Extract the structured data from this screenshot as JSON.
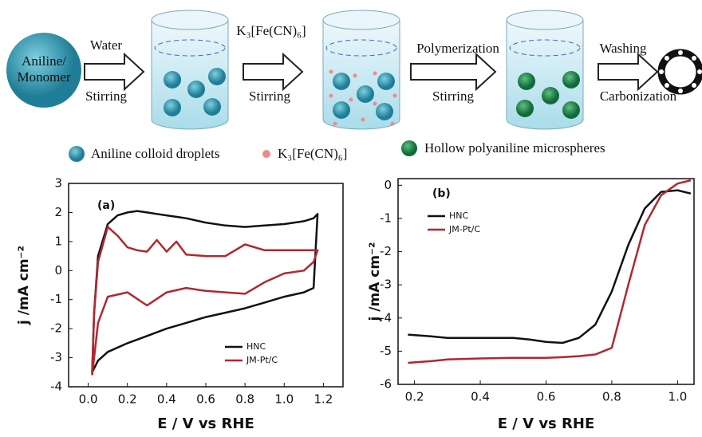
{
  "scheme": {
    "start_lines": [
      "Aniline/",
      "Monomer"
    ],
    "arrows": [
      {
        "above": "Water",
        "below": "Stirring"
      },
      {
        "above": "K₃[Fe(CN)₆]",
        "below": "Stirring"
      },
      {
        "above": "Polymerization",
        "below": "Stirring"
      },
      {
        "above": "Washing",
        "below": "Carbonization"
      }
    ],
    "legend": [
      "Aniline colloid droplets",
      "K₃[Fe(CN)₆]",
      "Hollow polyaniline microspheres"
    ]
  },
  "chart_data": [
    {
      "type": "line",
      "panel_label": "(a)",
      "x_label": "E / V vs RHE",
      "y_label": "j /mA cm⁻²",
      "x": [
        0.02,
        0.03,
        0.05,
        0.1,
        0.15,
        0.2,
        0.25,
        0.3,
        0.35,
        0.4,
        0.45,
        0.5,
        0.6,
        0.7,
        0.8,
        0.9,
        1.0,
        1.1,
        1.15,
        1.17,
        1.15,
        1.1,
        1.0,
        0.9,
        0.8,
        0.7,
        0.6,
        0.5,
        0.4,
        0.3,
        0.2,
        0.1,
        0.05,
        0.02
      ],
      "series": [
        {
          "name": "HNC",
          "color": "#111111",
          "values": [
            -3.5,
            -1.5,
            0.5,
            1.6,
            1.9,
            2.0,
            2.05,
            2.0,
            1.95,
            1.9,
            1.85,
            1.8,
            1.65,
            1.55,
            1.5,
            1.55,
            1.6,
            1.7,
            1.8,
            1.95,
            -0.6,
            -0.75,
            -0.9,
            -1.1,
            -1.3,
            -1.45,
            -1.6,
            -1.8,
            -2.0,
            -2.25,
            -2.5,
            -2.8,
            -3.1,
            -3.5
          ]
        },
        {
          "name": "JM-Pt/C",
          "color": "#b3262f",
          "values": [
            -3.6,
            -1.5,
            0.3,
            1.5,
            1.2,
            0.8,
            0.7,
            0.65,
            1.05,
            0.65,
            1.0,
            0.55,
            0.5,
            0.5,
            0.9,
            0.7,
            0.7,
            0.7,
            0.7,
            0.7,
            0.3,
            0.0,
            -0.1,
            -0.4,
            -0.8,
            -0.75,
            -0.7,
            -0.6,
            -0.75,
            -1.2,
            -0.75,
            -0.9,
            -1.8,
            -3.6
          ]
        }
      ],
      "xlim": [
        -0.1,
        1.3
      ],
      "ylim": [
        -4,
        3
      ],
      "xticks": [
        {
          "value": 0,
          "label": "0.0"
        },
        0.2,
        0.4,
        0.6,
        0.8,
        {
          "value": 1,
          "label": "1.0"
        },
        1.2
      ],
      "yticks": [
        -4,
        -3,
        -2,
        -1,
        0,
        1,
        2,
        3
      ]
    },
    {
      "type": "line",
      "panel_label": "(b)",
      "x_label": "E / V vs RHE",
      "y_label": "j /mA cm⁻²",
      "x": [
        0.18,
        0.25,
        0.3,
        0.4,
        0.5,
        0.55,
        0.6,
        0.65,
        0.7,
        0.75,
        0.8,
        0.85,
        0.9,
        0.95,
        1.0,
        1.04
      ],
      "series": [
        {
          "name": "HNC",
          "color": "#111111",
          "values": [
            -4.5,
            -4.55,
            -4.6,
            -4.6,
            -4.6,
            -4.65,
            -4.72,
            -4.75,
            -4.6,
            -4.2,
            -3.2,
            -1.8,
            -0.7,
            -0.2,
            -0.15,
            -0.25
          ]
        },
        {
          "name": "JM-Pt/C",
          "color": "#b3262f",
          "values": [
            -5.35,
            -5.3,
            -5.25,
            -5.22,
            -5.2,
            -5.2,
            -5.2,
            -5.18,
            -5.15,
            -5.1,
            -4.9,
            -3.0,
            -1.2,
            -0.3,
            0.05,
            0.15
          ]
        }
      ],
      "xlim": [
        0.15,
        1.05
      ],
      "ylim": [
        -6,
        0.2
      ],
      "xticks": [
        0.2,
        0.4,
        0.6,
        0.8,
        {
          "value": 1,
          "label": "1.0"
        }
      ],
      "yticks": [
        -6,
        -5,
        -4,
        -3,
        -2,
        -1,
        0
      ]
    }
  ]
}
